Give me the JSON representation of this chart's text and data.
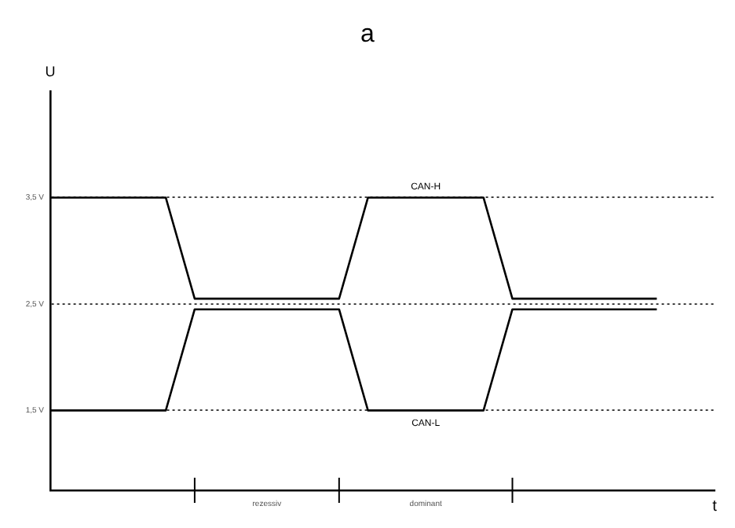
{
  "chart_data": {
    "type": "line",
    "title": "a",
    "xlabel": "t",
    "ylabel": "U",
    "categories": [
      null,
      null,
      null,
      null,
      null,
      null,
      null,
      null,
      null,
      null,
      null,
      null,
      null,
      null,
      null,
      null,
      null,
      null,
      null,
      null,
      null,
      null,
      null,
      null
    ],
    "ylim": [
      0.75,
      4.5
    ],
    "yticks": [
      {
        "value": 1.5,
        "label": "1,5 V"
      },
      {
        "value": 2.5,
        "label": "2,5 V"
      },
      {
        "value": 3.5,
        "label": "3,5 V"
      }
    ],
    "grid": "y",
    "legend": false,
    "marker": "none",
    "line_style": "solid",
    "annotations": [
      "rezessiv",
      "dominant"
    ],
    "series": [
      {
        "name": "CAN-H",
        "color": "#000000",
        "values": [
          3.5,
          3.5,
          3.5,
          3.5,
          3.5,
          2.55,
          2.55,
          2.55,
          2.55,
          2.55,
          2.55,
          3.5,
          3.5,
          3.5,
          3.5,
          3.5,
          2.55,
          2.55,
          2.55,
          2.55,
          2.55,
          2.55,
          null,
          null
        ]
      },
      {
        "name": "CAN-L",
        "color": "#000000",
        "values": [
          1.5,
          1.5,
          1.5,
          1.5,
          1.5,
          2.45,
          2.45,
          2.45,
          2.45,
          2.45,
          2.45,
          1.5,
          1.5,
          1.5,
          1.5,
          1.5,
          2.45,
          2.45,
          2.45,
          2.45,
          2.45,
          2.45,
          null,
          null
        ]
      }
    ]
  }
}
